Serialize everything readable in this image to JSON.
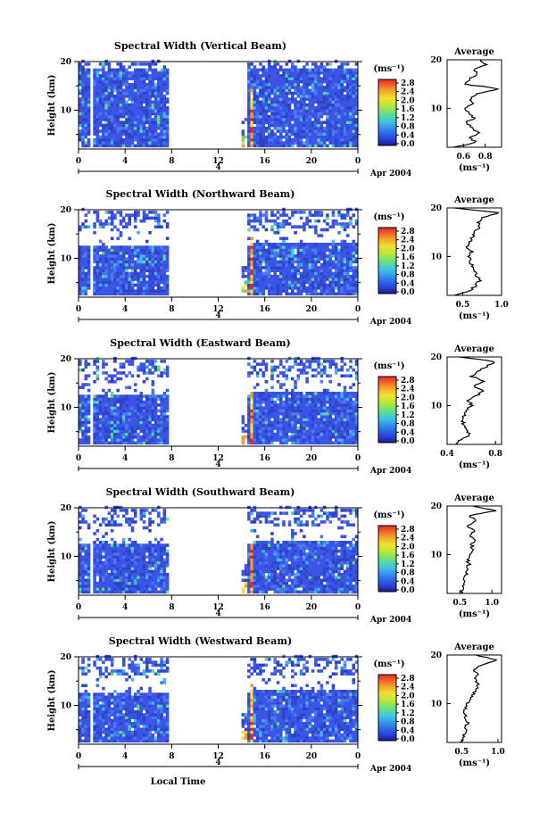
{
  "figure": {
    "xlabel": "Local Time",
    "ylabel": "Height (km)",
    "date_day": "4",
    "date_label": "Apr 2004",
    "colorbar_unit": "(ms⁻¹)",
    "colorbar_ticks": [
      "0.0",
      "0.4",
      "0.8",
      "1.2",
      "1.6",
      "2.0",
      "2.4",
      "2.8"
    ],
    "avg_title": "Average",
    "avg_xlabel": "(ms⁻¹)",
    "colors": {
      "background": "#ffffff",
      "data_blue": "#3c52e0",
      "axis": "#000000"
    }
  },
  "chart_data": [
    {
      "type": "heatmap",
      "title": "Spectral Width (Vertical Beam)",
      "xlabel": "Local Time",
      "ylabel": "Height (km)",
      "xlim": [
        0,
        24
      ],
      "ylim": [
        2,
        20
      ],
      "xticks": [
        "0",
        "4",
        "8",
        "12",
        "16",
        "20",
        "0"
      ],
      "yticks": [
        "10",
        "20"
      ],
      "colorbar": {
        "label": "(ms⁻¹)",
        "range": [
          0.0,
          2.8
        ],
        "ticks": [
          "0.0",
          "0.4",
          "0.8",
          "1.2",
          "1.6",
          "2.0",
          "2.4",
          "2.8"
        ]
      },
      "data_gap_hours": [
        [
          8.0,
          14.0
        ]
      ],
      "average_profile": {
        "title": "Average",
        "xlabel": "(ms⁻¹)",
        "xlim": [
          0.45,
          0.95
        ],
        "xticks": [
          "0.6",
          "0.8"
        ],
        "yticks": [
          "10",
          "20"
        ],
        "height_km": [
          2,
          3,
          4,
          5,
          6,
          7,
          8,
          9,
          10,
          11,
          12,
          13,
          14,
          15,
          16,
          17,
          18,
          19,
          20
        ],
        "width_ms": [
          0.5,
          0.72,
          0.66,
          0.74,
          0.68,
          0.62,
          0.7,
          0.64,
          0.62,
          0.68,
          0.66,
          0.72,
          0.92,
          0.62,
          0.66,
          0.72,
          0.7,
          0.8,
          0.76
        ]
      }
    },
    {
      "type": "heatmap",
      "title": "Spectral Width (Northward Beam)",
      "xlabel": "Local Time",
      "ylabel": "Height (km)",
      "xlim": [
        0,
        24
      ],
      "ylim": [
        2,
        20
      ],
      "xticks": [
        "0",
        "4",
        "8",
        "12",
        "16",
        "20",
        "0"
      ],
      "yticks": [
        "10",
        "20"
      ],
      "colorbar": {
        "label": "(ms⁻¹)",
        "range": [
          0.0,
          2.8
        ],
        "ticks": [
          "0.0",
          "0.4",
          "0.8",
          "1.2",
          "1.6",
          "2.0",
          "2.4",
          "2.8"
        ]
      },
      "data_gap_hours": [
        [
          8.0,
          14.0
        ]
      ],
      "average_profile": {
        "title": "Average",
        "xlabel": "(ms⁻¹)",
        "xlim": [
          0.3,
          1.0
        ],
        "xticks": [
          "0.5",
          "1.0"
        ],
        "yticks": [
          "10",
          "20"
        ],
        "height_km": [
          2,
          3,
          4,
          5,
          6,
          7,
          8,
          9,
          10,
          11,
          12,
          13,
          14,
          15,
          16,
          17,
          18,
          19,
          20
        ],
        "width_ms": [
          0.4,
          0.6,
          0.66,
          0.72,
          0.68,
          0.66,
          0.62,
          0.6,
          0.58,
          0.62,
          0.54,
          0.6,
          0.62,
          0.66,
          0.72,
          0.7,
          0.76,
          0.98,
          0.4
        ]
      }
    },
    {
      "type": "heatmap",
      "title": "Spectral Width (Eastward Beam)",
      "xlabel": "Local Time",
      "ylabel": "Height (km)",
      "xlim": [
        0,
        24
      ],
      "ylim": [
        2,
        20
      ],
      "xticks": [
        "0",
        "4",
        "8",
        "12",
        "16",
        "20",
        "0"
      ],
      "yticks": [
        "10",
        "20"
      ],
      "colorbar": {
        "label": "(ms⁻¹)",
        "range": [
          0.0,
          2.8
        ],
        "ticks": [
          "0.0",
          "0.4",
          "0.8",
          "1.2",
          "1.6",
          "2.0",
          "2.4",
          "2.8"
        ]
      },
      "data_gap_hours": [
        [
          8.0,
          14.0
        ]
      ],
      "average_profile": {
        "title": "Average",
        "xlabel": "(ms⁻¹)",
        "xlim": [
          0.4,
          0.85
        ],
        "xticks": [
          "0.4",
          "0.8"
        ],
        "yticks": [
          "10",
          "20"
        ],
        "height_km": [
          2,
          3,
          4,
          5,
          6,
          7,
          8,
          9,
          10,
          11,
          12,
          13,
          14,
          15,
          16,
          17,
          18,
          19,
          20
        ],
        "width_ms": [
          0.46,
          0.52,
          0.58,
          0.56,
          0.54,
          0.52,
          0.54,
          0.56,
          0.6,
          0.58,
          0.64,
          0.7,
          0.62,
          0.72,
          0.6,
          0.66,
          0.72,
          0.8,
          0.5
        ]
      }
    },
    {
      "type": "heatmap",
      "title": "Spectral Width (Southward Beam)",
      "xlabel": "Local Time",
      "ylabel": "Height (km)",
      "xlim": [
        0,
        24
      ],
      "ylim": [
        2,
        20
      ],
      "xticks": [
        "0",
        "4",
        "8",
        "12",
        "16",
        "20",
        "0"
      ],
      "yticks": [
        "10",
        "20"
      ],
      "colorbar": {
        "label": "(ms⁻¹)",
        "range": [
          0.0,
          2.8
        ],
        "ticks": [
          "0.0",
          "0.4",
          "0.8",
          "1.2",
          "1.6",
          "2.0",
          "2.4",
          "2.8"
        ]
      },
      "data_gap_hours": [
        [
          8.0,
          14.0
        ]
      ],
      "average_profile": {
        "title": "Average",
        "xlabel": "(ms⁻¹)",
        "xlim": [
          0.3,
          1.15
        ],
        "xticks": [
          "0.5",
          "1.0"
        ],
        "yticks": [
          "10",
          "20"
        ],
        "height_km": [
          2,
          3,
          4,
          5,
          6,
          7,
          8,
          9,
          10,
          11,
          12,
          13,
          14,
          15,
          16,
          17,
          18,
          19,
          20
        ],
        "width_ms": [
          0.5,
          0.54,
          0.58,
          0.56,
          0.6,
          0.62,
          0.64,
          0.62,
          0.66,
          0.7,
          0.68,
          0.76,
          0.64,
          0.72,
          0.62,
          0.74,
          0.66,
          1.05,
          0.7
        ]
      }
    },
    {
      "type": "heatmap",
      "title": "Spectral Width (Westward Beam)",
      "xlabel": "Local Time",
      "ylabel": "Height (km)",
      "xlim": [
        0,
        24
      ],
      "ylim": [
        2,
        20
      ],
      "xticks": [
        "0",
        "4",
        "8",
        "12",
        "16",
        "20",
        "0"
      ],
      "yticks": [
        "10",
        "20"
      ],
      "colorbar": {
        "label": "(ms⁻¹)",
        "range": [
          0.0,
          2.8
        ],
        "ticks": [
          "0.0",
          "0.4",
          "0.8",
          "1.2",
          "1.6",
          "2.0",
          "2.4",
          "2.8"
        ]
      },
      "data_gap_hours": [
        [
          8.0,
          14.0
        ]
      ],
      "average_profile": {
        "title": "Average",
        "xlabel": "(ms⁻¹)",
        "xlim": [
          0.3,
          1.05
        ],
        "xticks": [
          "0.5",
          "1.0"
        ],
        "yticks": [
          "10",
          "20"
        ],
        "height_km": [
          2,
          3,
          4,
          5,
          6,
          7,
          8,
          9,
          10,
          11,
          12,
          13,
          14,
          15,
          16,
          17,
          18,
          19,
          20
        ],
        "width_ms": [
          0.48,
          0.52,
          0.56,
          0.54,
          0.58,
          0.56,
          0.54,
          0.56,
          0.58,
          0.62,
          0.66,
          0.7,
          0.74,
          0.68,
          0.72,
          0.66,
          0.78,
          0.98,
          0.7
        ]
      }
    }
  ]
}
